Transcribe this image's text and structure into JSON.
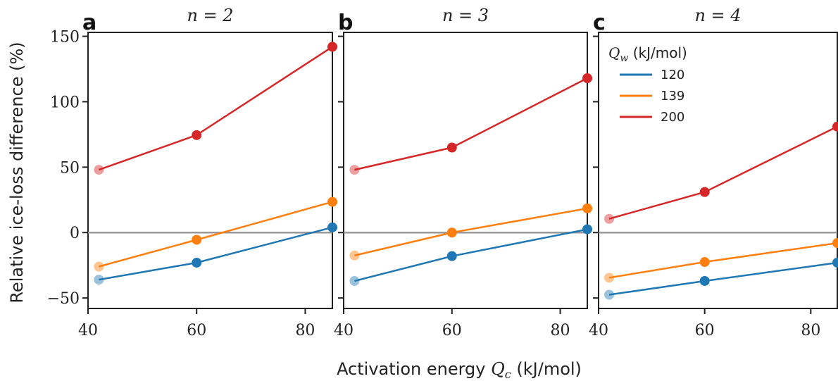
{
  "chart_data": {
    "type": "line",
    "xlabel": "Activation energy Q_c (kJ/mol)",
    "ylabel": "Relative ice-loss difference (%)",
    "xlim": [
      40,
      85
    ],
    "ylim": [
      -58,
      153
    ],
    "xticks": [
      40,
      60,
      80
    ],
    "yticks": [
      -50,
      0,
      50,
      100,
      150
    ],
    "grid": false,
    "zero_line": 0,
    "legend": {
      "title": "Q_w (kJ/mol)",
      "placement": "top-left of panel c",
      "entries": [
        "120",
        "139",
        "200"
      ]
    },
    "colors": {
      "120": "#1f77b4",
      "139": "#ff7f0e",
      "200": "#d62728"
    },
    "panels": [
      {
        "letter": "a",
        "title": "n = 2",
        "x": [
          42,
          60,
          85
        ],
        "series": [
          {
            "name": "120",
            "values": [
              -36,
              -23,
              4
            ]
          },
          {
            "name": "139",
            "values": [
              -26,
              -5.5,
              23.5
            ]
          },
          {
            "name": "200",
            "values": [
              48,
              74.5,
              142
            ]
          }
        ]
      },
      {
        "letter": "b",
        "title": "n = 3",
        "x": [
          42,
          60,
          85
        ],
        "series": [
          {
            "name": "120",
            "values": [
              -37,
              -18,
              2.5
            ]
          },
          {
            "name": "139",
            "values": [
              -17.5,
              0,
              18.5
            ]
          },
          {
            "name": "200",
            "values": [
              48,
              65,
              118
            ]
          }
        ]
      },
      {
        "letter": "c",
        "title": "n = 4",
        "x": [
          42,
          60,
          85
        ],
        "series": [
          {
            "name": "120",
            "values": [
              -47.5,
              -37,
              -23
            ]
          },
          {
            "name": "139",
            "values": [
              -34.5,
              -22.5,
              -8
            ]
          },
          {
            "name": "200",
            "values": [
              10.5,
              31,
              81
            ]
          }
        ]
      }
    ]
  }
}
